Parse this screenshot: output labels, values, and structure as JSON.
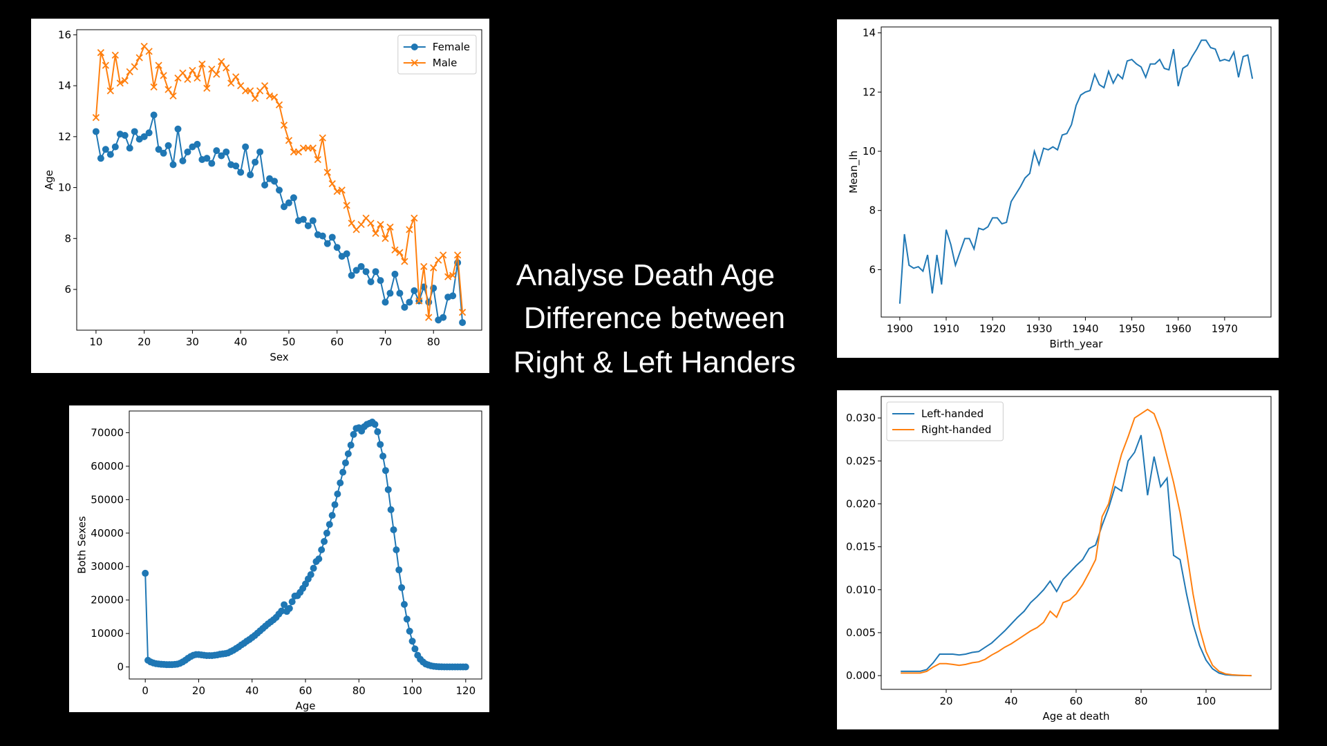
{
  "slide_title_lines": [
    "Analyse Death Age",
    "Difference between",
    "Right & Left Handers"
  ],
  "chart_data": [
    {
      "type": "line",
      "xlabel": "Sex",
      "ylabel": "Age",
      "legend": "upper right",
      "x": [
        10,
        11,
        12,
        13,
        14,
        15,
        16,
        17,
        18,
        19,
        20,
        21,
        22,
        23,
        24,
        25,
        26,
        27,
        28,
        29,
        30,
        31,
        32,
        33,
        34,
        35,
        36,
        37,
        38,
        39,
        40,
        41,
        42,
        43,
        44,
        45,
        46,
        47,
        48,
        49,
        50,
        51,
        52,
        53,
        54,
        55,
        56,
        57,
        58,
        59,
        60,
        61,
        62,
        63,
        64,
        65,
        66,
        67,
        68,
        69,
        70,
        71,
        72,
        73,
        74,
        75,
        76,
        77,
        78,
        79,
        80,
        81,
        82,
        83,
        84,
        85,
        86
      ],
      "series": [
        {
          "name": "Female",
          "color": "#1f77b4",
          "marker": "circle",
          "values": [
            12.2,
            11.15,
            11.5,
            11.3,
            11.6,
            12.1,
            12.05,
            11.55,
            12.2,
            11.9,
            12.0,
            12.15,
            12.85,
            11.5,
            11.35,
            11.65,
            10.9,
            12.3,
            11.05,
            11.4,
            11.6,
            11.7,
            11.1,
            11.15,
            10.95,
            11.45,
            11.25,
            11.4,
            10.9,
            10.85,
            10.6,
            11.6,
            10.5,
            11.0,
            11.4,
            10.1,
            10.35,
            10.25,
            9.9,
            9.25,
            9.4,
            9.6,
            8.7,
            8.75,
            8.5,
            8.7,
            8.15,
            8.1,
            7.8,
            8.05,
            7.65,
            7.3,
            7.4,
            6.55,
            6.75,
            6.9,
            6.7,
            6.3,
            6.7,
            6.35,
            5.5,
            5.85,
            6.6,
            5.85,
            5.3,
            5.5,
            5.95,
            5.55,
            6.1,
            5.5,
            6.05,
            4.8,
            4.9,
            5.7,
            5.75,
            7.05,
            4.7
          ]
        },
        {
          "name": "Male",
          "color": "#ff7f0e",
          "marker": "x",
          "values": [
            12.75,
            15.3,
            14.8,
            13.8,
            15.2,
            14.1,
            14.2,
            14.55,
            14.75,
            15.1,
            15.55,
            15.35,
            13.95,
            14.8,
            14.4,
            13.85,
            13.6,
            14.3,
            14.5,
            14.25,
            14.6,
            14.3,
            14.85,
            13.9,
            14.65,
            14.45,
            14.95,
            14.7,
            14.1,
            14.35,
            14.0,
            13.8,
            13.8,
            13.5,
            13.8,
            14.0,
            13.6,
            13.55,
            13.25,
            12.45,
            11.85,
            11.4,
            11.4,
            11.55,
            11.55,
            11.55,
            11.1,
            11.95,
            10.6,
            10.15,
            9.85,
            9.9,
            9.3,
            8.6,
            8.35,
            8.55,
            8.8,
            8.6,
            8.2,
            8.55,
            8.0,
            8.45,
            7.55,
            7.45,
            7.1,
            8.35,
            8.8,
            5.55,
            6.9,
            4.9,
            6.85,
            7.15,
            7.35,
            6.5,
            6.55,
            7.35,
            5.1
          ]
        }
      ],
      "xlim": [
        6,
        90
      ],
      "xticks": [
        10,
        20,
        30,
        40,
        50,
        60,
        70,
        80
      ],
      "ylim": [
        4.4,
        16.2
      ],
      "yticks": [
        6,
        8,
        10,
        12,
        14,
        16
      ]
    },
    {
      "type": "line",
      "xlabel": "Birth_year",
      "ylabel": "Mean_lh",
      "x": [
        1900,
        1901,
        1902,
        1903,
        1904,
        1905,
        1906,
        1907,
        1908,
        1909,
        1910,
        1911,
        1912,
        1913,
        1914,
        1915,
        1916,
        1917,
        1918,
        1919,
        1920,
        1921,
        1922,
        1923,
        1924,
        1925,
        1926,
        1927,
        1928,
        1929,
        1930,
        1931,
        1932,
        1933,
        1934,
        1935,
        1936,
        1937,
        1938,
        1939,
        1940,
        1941,
        1942,
        1943,
        1944,
        1945,
        1946,
        1947,
        1948,
        1949,
        1950,
        1951,
        1952,
        1953,
        1954,
        1955,
        1956,
        1957,
        1958,
        1959,
        1960,
        1961,
        1962,
        1963,
        1964,
        1965,
        1966,
        1967,
        1968,
        1969,
        1970,
        1971,
        1972,
        1973,
        1974,
        1975,
        1976
      ],
      "series": [
        {
          "color": "#1f77b4",
          "values": [
            4.85,
            7.2,
            6.15,
            6.05,
            6.1,
            5.95,
            6.5,
            5.2,
            6.5,
            5.5,
            7.35,
            6.85,
            6.15,
            6.6,
            7.05,
            7.05,
            6.7,
            7.4,
            7.35,
            7.45,
            7.75,
            7.75,
            7.55,
            7.6,
            8.3,
            8.55,
            8.8,
            9.1,
            9.25,
            10.0,
            9.55,
            10.1,
            10.05,
            10.15,
            10.05,
            10.55,
            10.6,
            10.9,
            11.55,
            11.9,
            12.0,
            12.05,
            12.6,
            12.25,
            12.15,
            12.7,
            12.3,
            12.6,
            12.45,
            13.05,
            13.1,
            12.95,
            12.85,
            12.5,
            12.95,
            12.95,
            13.1,
            12.8,
            12.75,
            13.45,
            12.2,
            12.8,
            12.9,
            13.2,
            13.45,
            13.75,
            13.75,
            13.5,
            13.45,
            13.05,
            13.1,
            13.05,
            13.35,
            12.5,
            13.2,
            13.25,
            12.45
          ]
        }
      ],
      "xlim": [
        1896,
        1980
      ],
      "xticks": [
        1900,
        1910,
        1920,
        1930,
        1940,
        1950,
        1960,
        1970
      ],
      "ylim": [
        4.4,
        14.2
      ],
      "yticks": [
        6,
        8,
        10,
        12,
        14
      ]
    },
    {
      "type": "line",
      "xlabel": "Age",
      "ylabel": "Both Sexes",
      "x": [
        0,
        1,
        2,
        3,
        4,
        5,
        6,
        7,
        8,
        9,
        10,
        11,
        12,
        13,
        14,
        15,
        16,
        17,
        18,
        19,
        20,
        21,
        22,
        23,
        24,
        25,
        26,
        27,
        28,
        29,
        30,
        31,
        32,
        33,
        34,
        35,
        36,
        37,
        38,
        39,
        40,
        41,
        42,
        43,
        44,
        45,
        46,
        47,
        48,
        49,
        50,
        51,
        52,
        53,
        54,
        55,
        56,
        57,
        58,
        59,
        60,
        61,
        62,
        63,
        64,
        65,
        66,
        67,
        68,
        69,
        70,
        71,
        72,
        73,
        74,
        75,
        76,
        77,
        78,
        79,
        80,
        81,
        82,
        83,
        84,
        85,
        86,
        87,
        88,
        89,
        90,
        91,
        92,
        93,
        94,
        95,
        96,
        97,
        98,
        99,
        100,
        101,
        102,
        103,
        104,
        105,
        106,
        107,
        108,
        109,
        110,
        111,
        112,
        113,
        114,
        115,
        116,
        117,
        118,
        119,
        120
      ],
      "series": [
        {
          "color": "#1f77b4",
          "marker": "circle",
          "values": [
            28000,
            2000,
            1500,
            1200,
            1000,
            900,
            800,
            750,
            700,
            700,
            700,
            750,
            850,
            1100,
            1500,
            2000,
            2600,
            3100,
            3500,
            3700,
            3700,
            3600,
            3500,
            3400,
            3400,
            3400,
            3500,
            3600,
            3800,
            3900,
            4000,
            4200,
            4600,
            5000,
            5500,
            6000,
            6600,
            7100,
            7700,
            8200,
            8800,
            9400,
            10100,
            10800,
            11500,
            12200,
            12900,
            13500,
            14100,
            14800,
            15800,
            16700,
            18600,
            16600,
            17500,
            19500,
            21200,
            21300,
            22300,
            23500,
            24800,
            26300,
            27600,
            29500,
            31500,
            32300,
            35000,
            37500,
            40000,
            42600,
            45300,
            48500,
            51700,
            55000,
            58200,
            61000,
            63700,
            66300,
            69500,
            71300,
            71500,
            70500,
            71800,
            72500,
            72800,
            73200,
            72500,
            70300,
            66500,
            63000,
            58700,
            53000,
            47000,
            41000,
            35000,
            29000,
            23700,
            18700,
            14300,
            10700,
            7700,
            5400,
            3500,
            2300,
            1500,
            900,
            600,
            350,
            200,
            120,
            70,
            40,
            20,
            10,
            5,
            0,
            0,
            0,
            0,
            0,
            0
          ]
        }
      ],
      "xlim": [
        -6,
        126
      ],
      "xticks": [
        0,
        20,
        40,
        60,
        80,
        100,
        120
      ],
      "ylim": [
        -3600,
        76500
      ],
      "yticks": [
        0,
        10000,
        20000,
        30000,
        40000,
        50000,
        60000,
        70000
      ]
    },
    {
      "type": "line",
      "xlabel": "Age at death",
      "legend": "upper left",
      "x": [
        6,
        8,
        10,
        12,
        14,
        16,
        18,
        20,
        22,
        24,
        26,
        28,
        30,
        32,
        34,
        36,
        38,
        40,
        42,
        44,
        46,
        48,
        50,
        52,
        54,
        56,
        58,
        60,
        62,
        64,
        66,
        68,
        70,
        72,
        74,
        76,
        78,
        80,
        82,
        84,
        86,
        88,
        90,
        92,
        94,
        96,
        98,
        100,
        102,
        104,
        106,
        108,
        110,
        112,
        114
      ],
      "series": [
        {
          "name": "Left-handed",
          "color": "#1f77b4",
          "values": [
            0.0005,
            0.0005,
            0.0005,
            0.0005,
            0.0007,
            0.0015,
            0.0025,
            0.0025,
            0.0025,
            0.0024,
            0.0025,
            0.0027,
            0.0028,
            0.0033,
            0.0038,
            0.0045,
            0.0052,
            0.006,
            0.0068,
            0.0075,
            0.0085,
            0.0092,
            0.01,
            0.011,
            0.0098,
            0.0112,
            0.012,
            0.0128,
            0.0135,
            0.0148,
            0.0152,
            0.0175,
            0.0195,
            0.022,
            0.0215,
            0.025,
            0.026,
            0.028,
            0.021,
            0.0255,
            0.022,
            0.023,
            0.014,
            0.0135,
            0.0095,
            0.006,
            0.0035,
            0.0018,
            0.0008,
            0.0003,
            0.0001,
            5e-05,
            2e-05,
            1e-05,
            0
          ]
        },
        {
          "name": "Right-handed",
          "color": "#ff7f0e",
          "values": [
            0.0003,
            0.0003,
            0.0003,
            0.0003,
            0.0005,
            0.001,
            0.0014,
            0.0014,
            0.0013,
            0.0012,
            0.0013,
            0.0015,
            0.0016,
            0.0019,
            0.0024,
            0.0028,
            0.0033,
            0.0037,
            0.0042,
            0.0047,
            0.0052,
            0.0056,
            0.0062,
            0.0075,
            0.0068,
            0.0085,
            0.0088,
            0.0095,
            0.0106,
            0.012,
            0.0135,
            0.0185,
            0.02,
            0.023,
            0.0258,
            0.0278,
            0.03,
            0.0305,
            0.031,
            0.0305,
            0.0285,
            0.0255,
            0.0225,
            0.019,
            0.0145,
            0.0095,
            0.0055,
            0.0028,
            0.0012,
            0.0005,
            0.0002,
            0.0001,
            5e-05,
            2e-05,
            0
          ]
        }
      ],
      "xlim": [
        0,
        120
      ],
      "xticks": [
        20,
        40,
        60,
        80,
        100
      ],
      "ylim": [
        -0.0016,
        0.0325
      ],
      "yticks": [
        {
          "value": 0,
          "label": "0.000"
        },
        0.005,
        {
          "value": 0.01,
          "label": "0.010"
        },
        0.015,
        {
          "value": 0.02,
          "label": "0.020"
        },
        0.025,
        {
          "value": 0.03,
          "label": "0.030"
        }
      ]
    }
  ]
}
